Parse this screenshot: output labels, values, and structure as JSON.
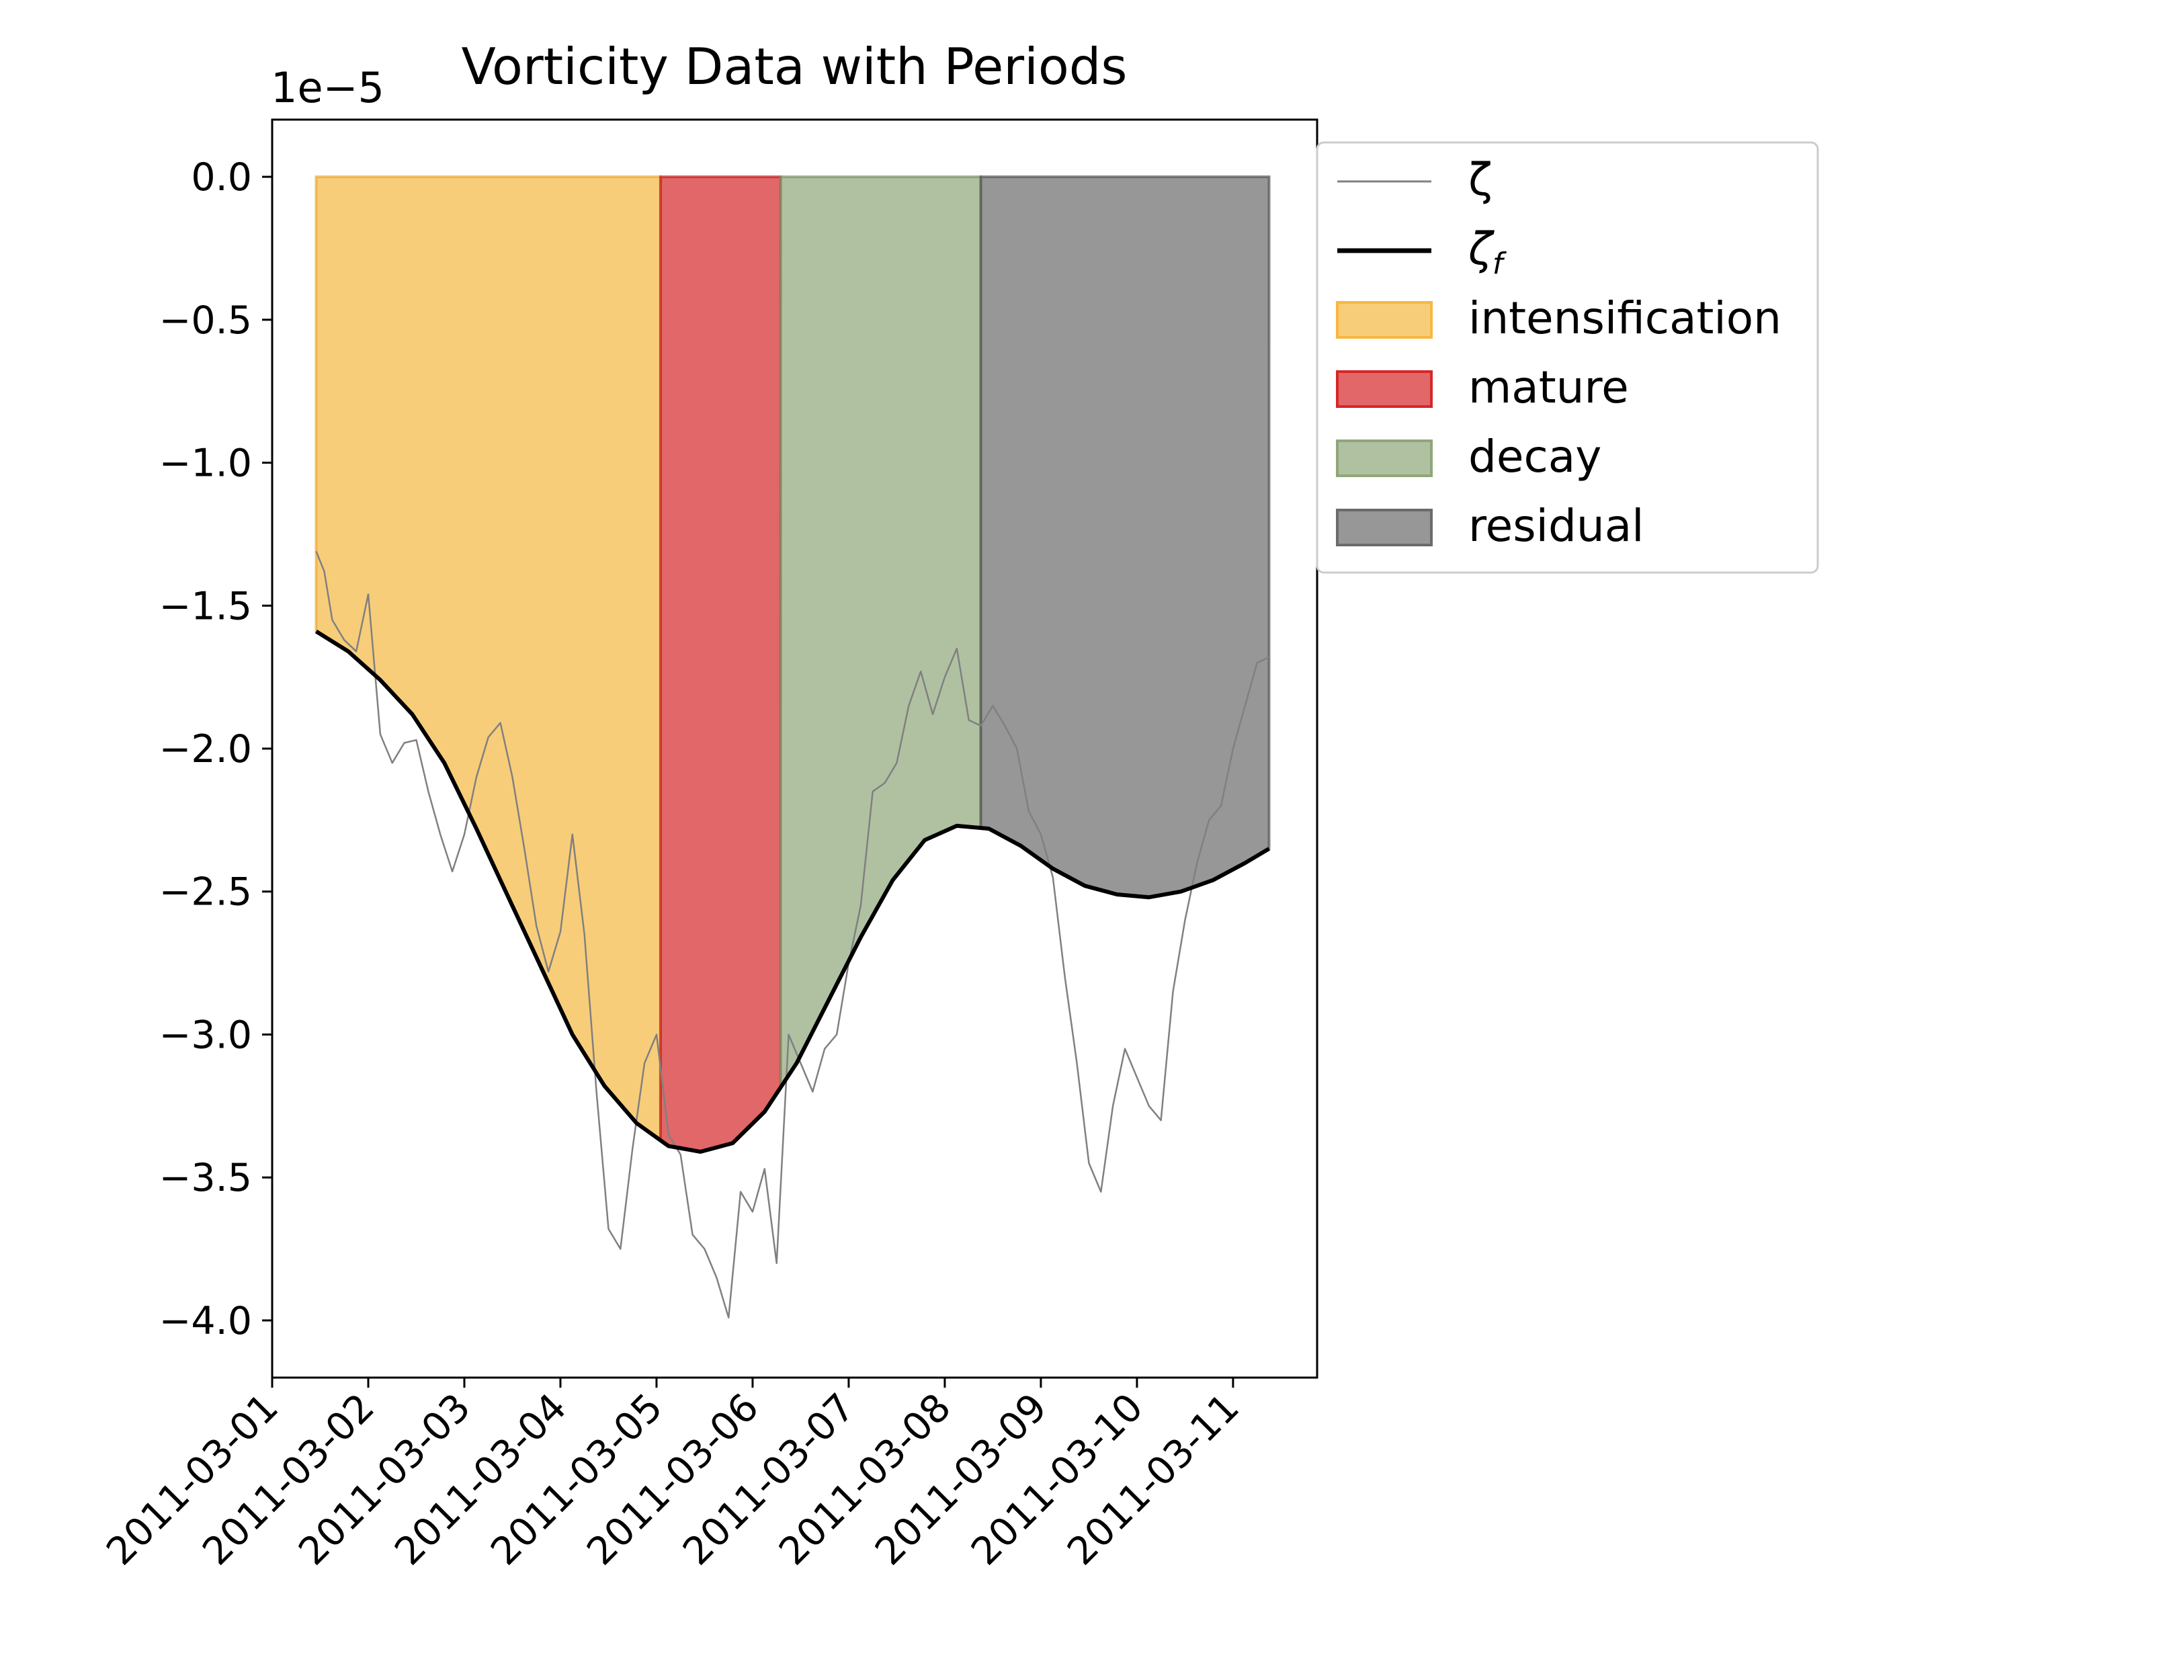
{
  "chart_data": {
    "type": "line",
    "title": "Vorticity Data with Periods",
    "xlabel": "",
    "ylabel": "",
    "y_offset_text": "1e−5",
    "y_scale_factor": 1e-05,
    "xlim": [
      "2011-03-01T00:00",
      "2011-03-11T21:00"
    ],
    "ylim": [
      -4.2,
      0.2
    ],
    "x_ticks": [
      "2011-03-01",
      "2011-03-02",
      "2011-03-03",
      "2011-03-04",
      "2011-03-05",
      "2011-03-06",
      "2011-03-07",
      "2011-03-08",
      "2011-03-09",
      "2011-03-10",
      "2011-03-11"
    ],
    "y_ticks": [
      0.0,
      -0.5,
      -1.0,
      -1.5,
      -2.0,
      -2.5,
      -3.0,
      -3.5,
      -4.0
    ],
    "y_tick_labels": [
      "0.0",
      "−0.5",
      "−1.0",
      "−1.5",
      "−2.0",
      "−2.5",
      "−3.0",
      "−3.5",
      "−4.0"
    ],
    "grid": false,
    "legend_position": "outside upper-right",
    "periods": [
      {
        "name": "intensification",
        "start": "2011-03-01T11:00",
        "end": "2011-03-05T01:00",
        "color": "#f5b841",
        "edge": "#f0a830"
      },
      {
        "name": "mature",
        "start": "2011-03-05T01:00",
        "end": "2011-03-06T07:00",
        "color": "#d62728",
        "edge": "#c42020"
      },
      {
        "name": "decay",
        "start": "2011-03-06T07:00",
        "end": "2011-03-08T09:00",
        "color": "#8fa67a",
        "edge": "#7c9168"
      },
      {
        "name": "residual",
        "start": "2011-03-08T09:00",
        "end": "2011-03-11T09:00",
        "color": "#6b6b6b",
        "edge": "#555555"
      }
    ],
    "series": [
      {
        "name": "ζ",
        "color": "#808080",
        "x": [
          "2011-03-01T11:00",
          "2011-03-01T13:00",
          "2011-03-01T15:00",
          "2011-03-01T18:00",
          "2011-03-01T21:00",
          "2011-03-02T00:00",
          "2011-03-02T03:00",
          "2011-03-02T06:00",
          "2011-03-02T09:00",
          "2011-03-02T12:00",
          "2011-03-02T15:00",
          "2011-03-02T18:00",
          "2011-03-02T21:00",
          "2011-03-03T00:00",
          "2011-03-03T03:00",
          "2011-03-03T06:00",
          "2011-03-03T09:00",
          "2011-03-03T12:00",
          "2011-03-03T15:00",
          "2011-03-03T18:00",
          "2011-03-03T21:00",
          "2011-03-04T00:00",
          "2011-03-04T03:00",
          "2011-03-04T06:00",
          "2011-03-04T09:00",
          "2011-03-04T12:00",
          "2011-03-04T15:00",
          "2011-03-04T18:00",
          "2011-03-04T21:00",
          "2011-03-05T00:00",
          "2011-03-05T03:00",
          "2011-03-05T06:00",
          "2011-03-05T09:00",
          "2011-03-05T12:00",
          "2011-03-05T15:00",
          "2011-03-05T18:00",
          "2011-03-05T21:00",
          "2011-03-06T00:00",
          "2011-03-06T03:00",
          "2011-03-06T06:00",
          "2011-03-06T09:00",
          "2011-03-06T12:00",
          "2011-03-06T15:00",
          "2011-03-06T18:00",
          "2011-03-06T21:00",
          "2011-03-07T00:00",
          "2011-03-07T03:00",
          "2011-03-07T06:00",
          "2011-03-07T09:00",
          "2011-03-07T12:00",
          "2011-03-07T15:00",
          "2011-03-07T18:00",
          "2011-03-07T21:00",
          "2011-03-08T00:00",
          "2011-03-08T03:00",
          "2011-03-08T06:00",
          "2011-03-08T09:00",
          "2011-03-08T12:00",
          "2011-03-08T15:00",
          "2011-03-08T18:00",
          "2011-03-08T21:00",
          "2011-03-09T00:00",
          "2011-03-09T03:00",
          "2011-03-09T06:00",
          "2011-03-09T09:00",
          "2011-03-09T12:00",
          "2011-03-09T15:00",
          "2011-03-09T18:00",
          "2011-03-09T21:00",
          "2011-03-10T00:00",
          "2011-03-10T03:00",
          "2011-03-10T06:00",
          "2011-03-10T09:00",
          "2011-03-10T12:00",
          "2011-03-10T15:00",
          "2011-03-10T18:00",
          "2011-03-10T21:00",
          "2011-03-11T00:00",
          "2011-03-11T03:00",
          "2011-03-11T06:00",
          "2011-03-11T09:00"
        ],
        "values": [
          -1.31,
          -1.38,
          -1.55,
          -1.62,
          -1.66,
          -1.46,
          -1.95,
          -2.05,
          -1.98,
          -1.97,
          -2.15,
          -2.3,
          -2.43,
          -2.3,
          -2.1,
          -1.96,
          -1.91,
          -2.1,
          -2.35,
          -2.62,
          -2.78,
          -2.64,
          -2.3,
          -2.65,
          -3.2,
          -3.68,
          -3.75,
          -3.4,
          -3.1,
          -3.0,
          -3.35,
          -3.42,
          -3.7,
          -3.75,
          -3.85,
          -3.99,
          -3.55,
          -3.62,
          -3.47,
          -3.8,
          -3.0,
          -3.1,
          -3.2,
          -3.05,
          -3.0,
          -2.75,
          -2.55,
          -2.15,
          -2.12,
          -2.05,
          -1.85,
          -1.73,
          -1.88,
          -1.75,
          -1.65,
          -1.9,
          -1.92,
          -1.85,
          -1.92,
          -2.0,
          -2.22,
          -2.3,
          -2.45,
          -2.8,
          -3.1,
          -3.45,
          -3.55,
          -3.25,
          -3.05,
          -3.15,
          -3.25,
          -3.3,
          -2.85,
          -2.6,
          -2.4,
          -2.25,
          -2.2,
          -2.0,
          -1.85,
          -1.7,
          -1.68
        ]
      },
      {
        "name": "ζf",
        "color": "#000000",
        "x": [
          "2011-03-01T11:00",
          "2011-03-01T19:00",
          "2011-03-02T03:00",
          "2011-03-02T11:00",
          "2011-03-02T19:00",
          "2011-03-03T03:00",
          "2011-03-03T11:00",
          "2011-03-03T19:00",
          "2011-03-04T03:00",
          "2011-03-04T11:00",
          "2011-03-04T19:00",
          "2011-03-05T03:00",
          "2011-03-05T11:00",
          "2011-03-05T19:00",
          "2011-03-06T03:00",
          "2011-03-06T11:00",
          "2011-03-06T19:00",
          "2011-03-07T03:00",
          "2011-03-07T11:00",
          "2011-03-07T19:00",
          "2011-03-08T03:00",
          "2011-03-08T11:00",
          "2011-03-08T19:00",
          "2011-03-09T03:00",
          "2011-03-09T11:00",
          "2011-03-09T19:00",
          "2011-03-10T03:00",
          "2011-03-10T11:00",
          "2011-03-10T19:00",
          "2011-03-11T03:00",
          "2011-03-11T09:00"
        ],
        "values": [
          -1.59,
          -1.66,
          -1.76,
          -1.88,
          -2.05,
          -2.28,
          -2.52,
          -2.76,
          -3.0,
          -3.18,
          -3.31,
          -3.39,
          -3.41,
          -3.38,
          -3.27,
          -3.1,
          -2.88,
          -2.66,
          -2.46,
          -2.32,
          -2.27,
          -2.28,
          -2.34,
          -2.42,
          -2.48,
          -2.51,
          -2.52,
          -2.5,
          -2.46,
          -2.4,
          -2.35
        ]
      }
    ]
  },
  "legend": [
    {
      "label": "ζ",
      "kind": "thin-line",
      "color": "#808080"
    },
    {
      "label": "ζ",
      "sub": "f",
      "kind": "thick-line",
      "color": "#000000"
    },
    {
      "label": "intensification",
      "kind": "patch",
      "color": "#f5b841"
    },
    {
      "label": "mature",
      "kind": "patch",
      "color": "#d62728"
    },
    {
      "label": "decay",
      "kind": "patch",
      "color": "#8fa67a"
    },
    {
      "label": "residual",
      "kind": "patch",
      "color": "#6b6b6b"
    }
  ]
}
